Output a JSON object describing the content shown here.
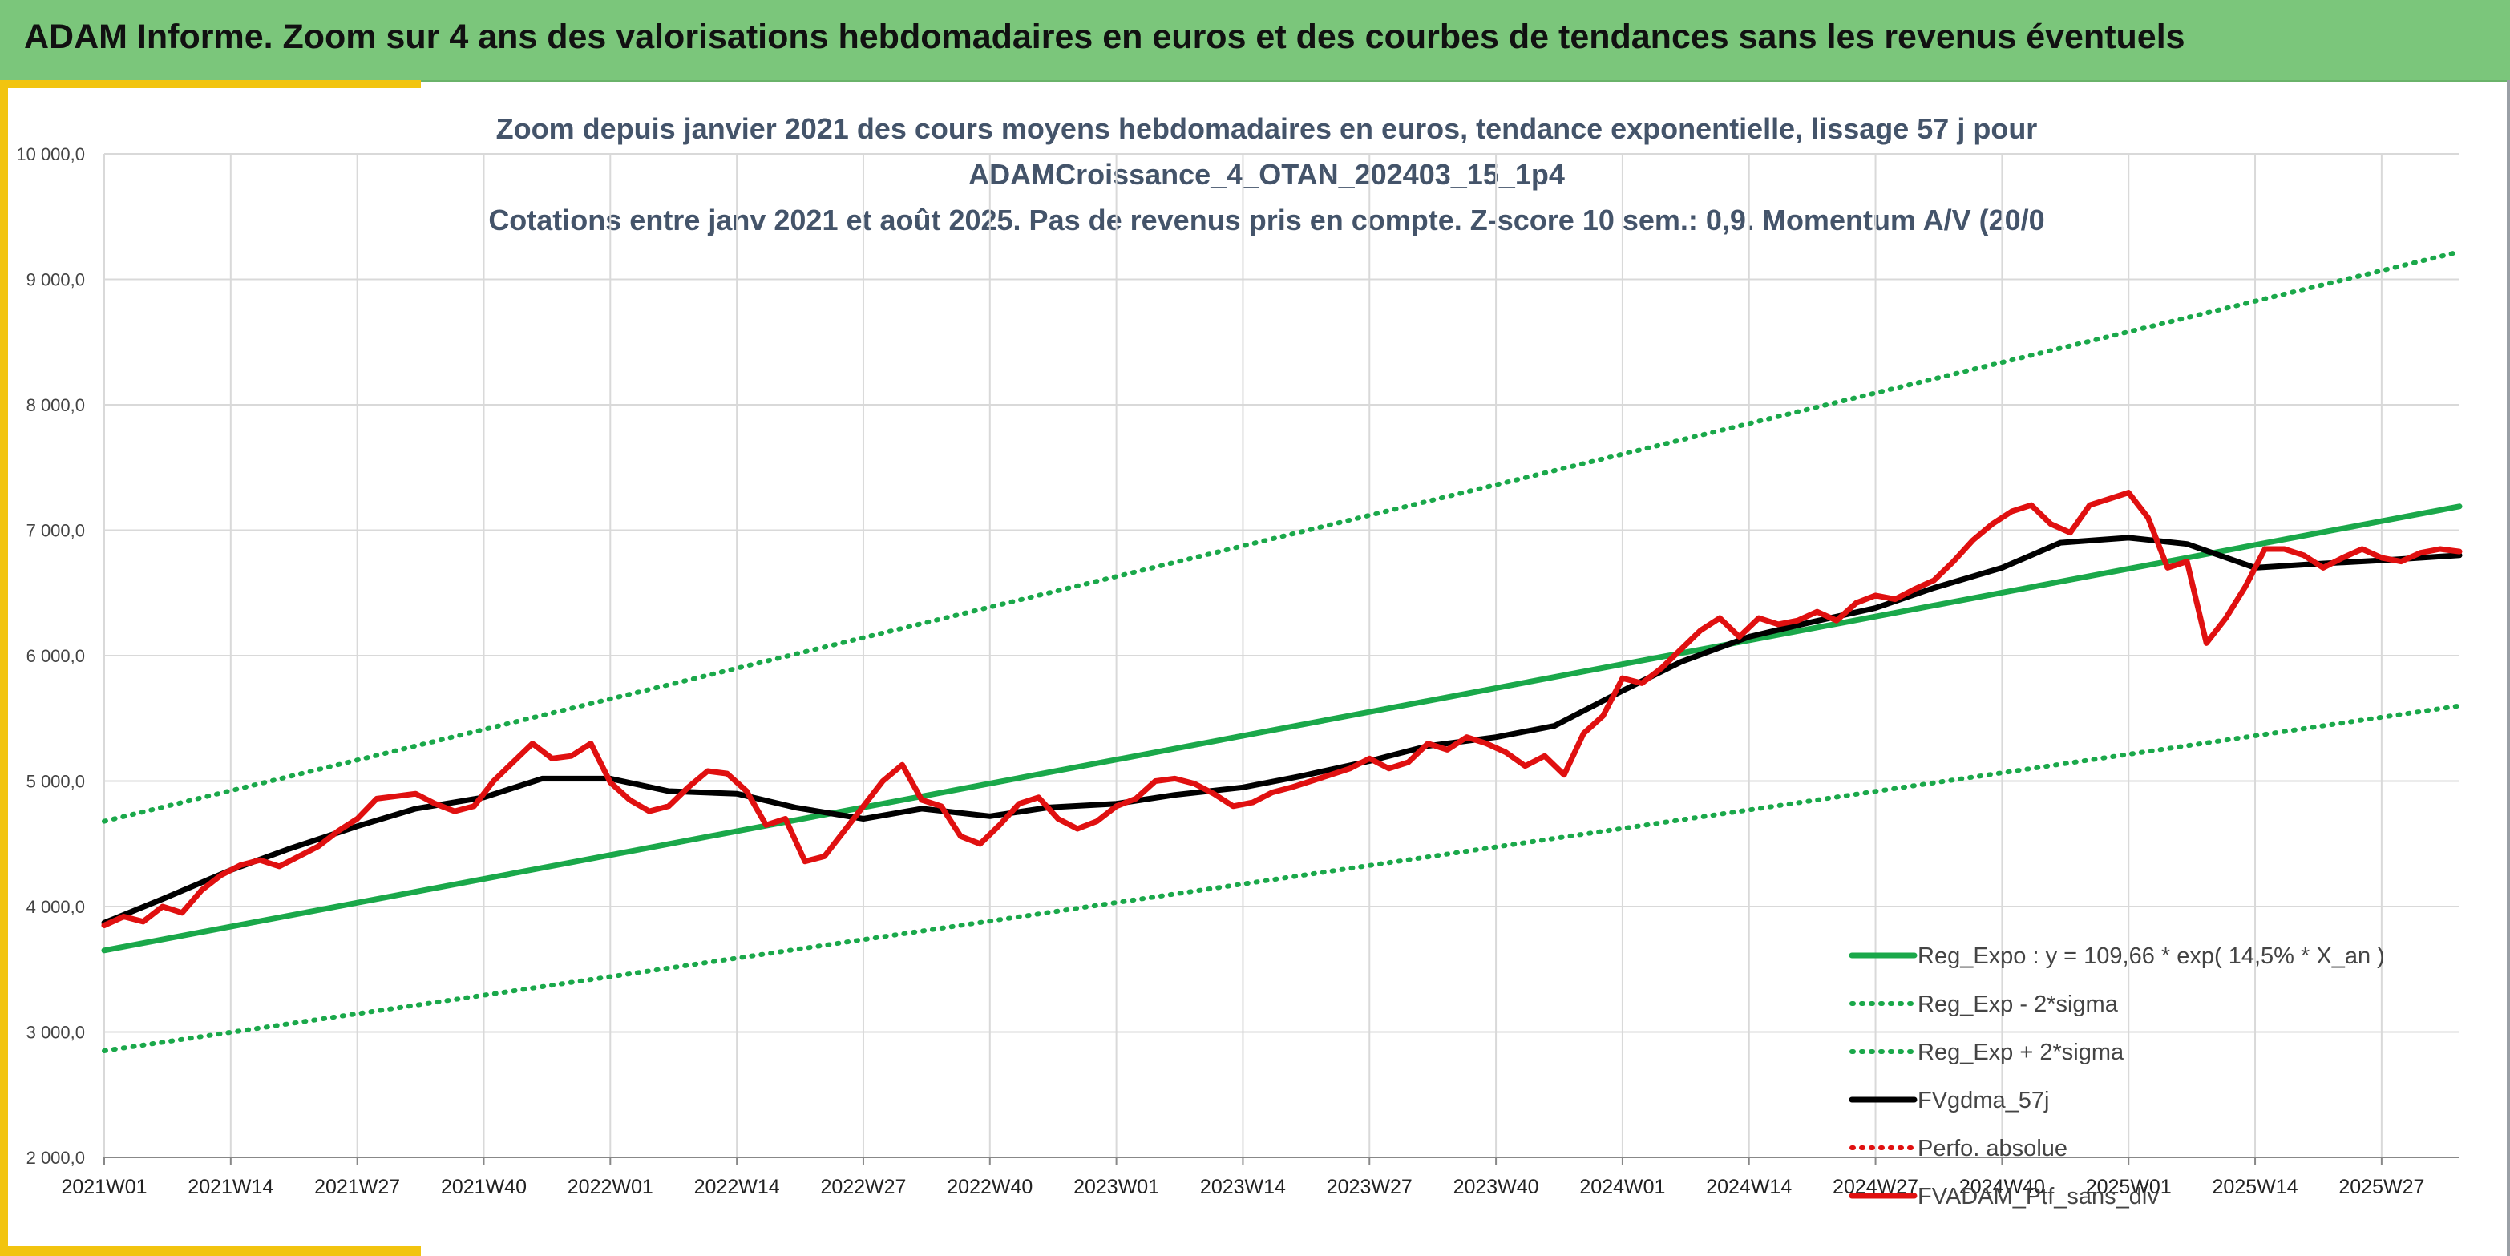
{
  "banner": {
    "title": "ADAM Informe. Zoom sur 4 ans des valorisations hebdomadaires en euros et des courbes de tendances sans les revenus éventuels"
  },
  "colors": {
    "banner_bg": "#7bc67b",
    "accent": "#f2c40f",
    "reg_expo": "#1aa84a",
    "sigma": "#1aa84a",
    "gdma": "#000000",
    "perfo": "#e01010",
    "fvadam": "#e01010"
  },
  "chart_data": {
    "type": "line",
    "title_lines": [
      "Zoom depuis janvier 2021 des cours moyens hebdomadaires en euros, tendance exponentielle, lissage 57 j pour",
      "ADAMCroissance_4_OTAN_202403_15_1p4",
      "Cotations entre janv 2021 et août 2025. Pas de revenus pris en compte. Z-score 10 sem.: 0,9. Momentum A/V (20/0"
    ],
    "xlabel": "",
    "ylabel": "",
    "ylim": [
      2000,
      10000
    ],
    "y_ticks": [
      "2 000,0",
      "3 000,0",
      "4 000,0",
      "5 000,0",
      "6 000,0",
      "7 000,0",
      "8 000,0",
      "9 000,0",
      "10 000,0"
    ],
    "x_ticks": [
      "2021W01",
      "2021W14",
      "2021W27",
      "2021W40",
      "2022W01",
      "2022W14",
      "2022W27",
      "2022W40",
      "2023W01",
      "2023W14",
      "2023W27",
      "2023W40",
      "2024W01",
      "2024W14",
      "2024W27",
      "2024W40",
      "2025W01",
      "2025W14",
      "2025W27"
    ],
    "grid": true,
    "legend_position": "bottom-right",
    "series": [
      {
        "name": "Reg_Expo : y = 109,66 * exp( 14,5% *  X_an )",
        "style": "solid-thick",
        "color": "#1aa84a",
        "x": [
          "2021W01",
          "2025W35"
        ],
        "y": [
          3650,
          7190
        ]
      },
      {
        "name": "Reg_Exp - 2*sigma",
        "style": "dotted",
        "color": "#1aa84a",
        "x": [
          "2021W01",
          "2025W35"
        ],
        "y": [
          2850,
          5600
        ]
      },
      {
        "name": "Reg_Exp + 2*sigma",
        "style": "dotted",
        "color": "#1aa84a",
        "x": [
          "2021W01",
          "2025W35"
        ],
        "y": [
          4680,
          9220
        ]
      },
      {
        "name": "FVgdma_57j",
        "style": "solid-thick",
        "color": "#000000",
        "x": [
          "2021W01",
          "2021W07",
          "2021W14",
          "2021W20",
          "2021W27",
          "2021W33",
          "2021W40",
          "2021W46",
          "2022W01",
          "2022W07",
          "2022W14",
          "2022W20",
          "2022W27",
          "2022W33",
          "2022W40",
          "2022W46",
          "2023W01",
          "2023W07",
          "2023W14",
          "2023W20",
          "2023W27",
          "2023W33",
          "2023W40",
          "2023W46",
          "2024W01",
          "2024W07",
          "2024W14",
          "2024W20",
          "2024W27",
          "2024W33",
          "2024W40",
          "2024W46",
          "2025W01",
          "2025W07",
          "2025W14",
          "2025W20",
          "2025W27",
          "2025W35"
        ],
        "y": [
          3870,
          4060,
          4290,
          4460,
          4640,
          4780,
          4870,
          5020,
          5020,
          4920,
          4900,
          4790,
          4700,
          4780,
          4720,
          4790,
          4820,
          4890,
          4950,
          5040,
          5160,
          5280,
          5350,
          5440,
          5720,
          5950,
          6150,
          6260,
          6380,
          6540,
          6700,
          6900,
          6940,
          6890,
          6700,
          6730,
          6760,
          6800
        ]
      },
      {
        "name": "Perfo. absolue",
        "style": "dotted",
        "color": "#e01010",
        "x": [],
        "y": []
      },
      {
        "name": "FVADAM_Ptf_sans_div",
        "style": "solid-thick",
        "color": "#e01010",
        "x": [
          "2021W01",
          "2021W03",
          "2021W05",
          "2021W07",
          "2021W09",
          "2021W11",
          "2021W13",
          "2021W15",
          "2021W17",
          "2021W19",
          "2021W21",
          "2021W23",
          "2021W25",
          "2021W27",
          "2021W29",
          "2021W31",
          "2021W33",
          "2021W35",
          "2021W37",
          "2021W39",
          "2021W41",
          "2021W43",
          "2021W45",
          "2021W47",
          "2021W49",
          "2021W51",
          "2022W01",
          "2022W03",
          "2022W05",
          "2022W07",
          "2022W09",
          "2022W11",
          "2022W13",
          "2022W15",
          "2022W17",
          "2022W19",
          "2022W21",
          "2022W23",
          "2022W25",
          "2022W27",
          "2022W29",
          "2022W31",
          "2022W33",
          "2022W35",
          "2022W37",
          "2022W39",
          "2022W41",
          "2022W43",
          "2022W45",
          "2022W47",
          "2022W49",
          "2022W51",
          "2023W01",
          "2023W03",
          "2023W05",
          "2023W07",
          "2023W09",
          "2023W11",
          "2023W13",
          "2023W15",
          "2023W17",
          "2023W19",
          "2023W21",
          "2023W23",
          "2023W25",
          "2023W27",
          "2023W29",
          "2023W31",
          "2023W33",
          "2023W35",
          "2023W37",
          "2023W39",
          "2023W41",
          "2023W43",
          "2023W45",
          "2023W47",
          "2023W49",
          "2023W51",
          "2024W01",
          "2024W03",
          "2024W05",
          "2024W07",
          "2024W09",
          "2024W11",
          "2024W13",
          "2024W15",
          "2024W17",
          "2024W19",
          "2024W21",
          "2024W23",
          "2024W25",
          "2024W27",
          "2024W29",
          "2024W31",
          "2024W33",
          "2024W35",
          "2024W37",
          "2024W39",
          "2024W41",
          "2024W43",
          "2024W45",
          "2024W47",
          "2024W49",
          "2024W51",
          "2025W01",
          "2025W03",
          "2025W05",
          "2025W07",
          "2025W09",
          "2025W11",
          "2025W13",
          "2025W15",
          "2025W17",
          "2025W19",
          "2025W21",
          "2025W23",
          "2025W25",
          "2025W27",
          "2025W29",
          "2025W31",
          "2025W33",
          "2025W35"
        ],
        "y": [
          3850,
          3920,
          3880,
          4000,
          3950,
          4130,
          4250,
          4330,
          4370,
          4320,
          4400,
          4480,
          4600,
          4700,
          4860,
          4880,
          4900,
          4820,
          4760,
          4800,
          5000,
          5150,
          5300,
          5180,
          5200,
          5300,
          4990,
          4850,
          4760,
          4800,
          4950,
          5080,
          5060,
          4920,
          4650,
          4700,
          4360,
          4400,
          4600,
          4800,
          5000,
          5130,
          4850,
          4800,
          4560,
          4500,
          4650,
          4820,
          4870,
          4700,
          4620,
          4680,
          4800,
          4860,
          5000,
          5020,
          4980,
          4900,
          4800,
          4830,
          4910,
          4950,
          5000,
          5050,
          5100,
          5180,
          5100,
          5150,
          5300,
          5250,
          5350,
          5300,
          5230,
          5120,
          5200,
          5050,
          5380,
          5520,
          5820,
          5780,
          5900,
          6050,
          6200,
          6300,
          6150,
          6300,
          6250,
          6280,
          6350,
          6280,
          6420,
          6480,
          6450,
          6530,
          6600,
          6750,
          6920,
          7050,
          7150,
          7200,
          7050,
          6980,
          7200,
          7250,
          7300,
          7100,
          6700,
          6750,
          6100,
          6300,
          6550,
          6850,
          6850,
          6800,
          6700,
          6780,
          6850,
          6780,
          6750,
          6820,
          6850,
          6830
        ]
      }
    ]
  }
}
